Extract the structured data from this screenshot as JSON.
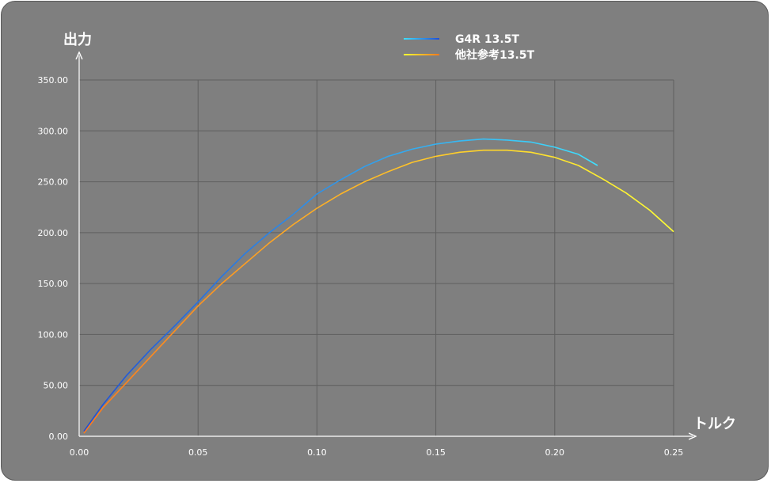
{
  "chart_data": {
    "type": "line",
    "ylabel": "出力",
    "xlabel": "トルク",
    "xlim": [
      0,
      0.25
    ],
    "ylim": [
      0,
      350
    ],
    "x_ticks": [
      "0.00",
      "0.05",
      "0.10",
      "0.15",
      "0.20",
      "0.25"
    ],
    "y_ticks": [
      "0.00",
      "50.00",
      "100.00",
      "150.00",
      "200.00",
      "250.00",
      "300.00",
      "350.00"
    ],
    "grid": true,
    "legend_position": "top-center",
    "series": [
      {
        "name": "G4R 13.5T",
        "color_start": "#1e4fd8",
        "color_end": "#3fe0ff",
        "x": [
          0.002,
          0.01,
          0.02,
          0.03,
          0.04,
          0.05,
          0.06,
          0.07,
          0.08,
          0.09,
          0.1,
          0.11,
          0.12,
          0.13,
          0.14,
          0.15,
          0.16,
          0.17,
          0.18,
          0.19,
          0.2,
          0.21,
          0.218
        ],
        "y": [
          5,
          31,
          60,
          85,
          108,
          132,
          157,
          180,
          200,
          218,
          238,
          252,
          265,
          275,
          282,
          287,
          290,
          292,
          291,
          289,
          284,
          277,
          266
        ]
      },
      {
        "name": "他社参考13.5T",
        "color_start": "#ff7a1a",
        "color_end": "#ffff33",
        "x": [
          0.002,
          0.01,
          0.02,
          0.03,
          0.04,
          0.05,
          0.06,
          0.07,
          0.08,
          0.09,
          0.1,
          0.11,
          0.12,
          0.13,
          0.14,
          0.15,
          0.16,
          0.17,
          0.18,
          0.19,
          0.2,
          0.21,
          0.22,
          0.23,
          0.24,
          0.25
        ],
        "y": [
          3,
          28,
          53,
          78,
          103,
          128,
          150,
          170,
          190,
          208,
          224,
          238,
          250,
          260,
          269,
          275,
          279,
          281,
          281,
          279,
          274,
          266,
          253,
          239,
          222,
          201
        ]
      }
    ]
  }
}
